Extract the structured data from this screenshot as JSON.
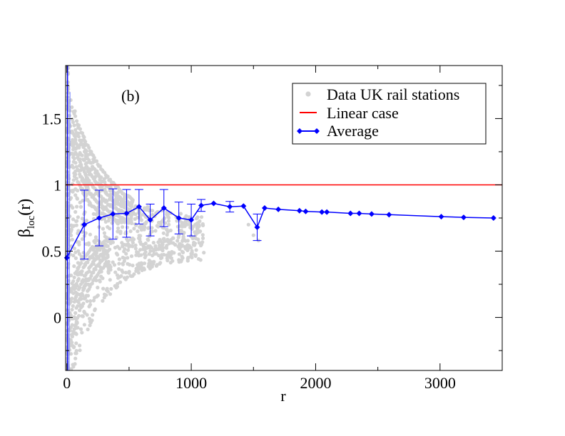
{
  "chart_data": {
    "type": "scatter",
    "panel_label": "(b)",
    "xlabel": "r",
    "ylabel_main": "β",
    "ylabel_sub": "loc",
    "ylabel_tail": "(r)",
    "xlim": [
      -10,
      3500
    ],
    "ylim": [
      -0.4,
      1.9
    ],
    "xticks": [
      0,
      1000,
      2000,
      3000
    ],
    "xtick_labels": [
      "0",
      "1000",
      "2000",
      "3000"
    ],
    "yticks": [
      0,
      0.5,
      1,
      1.5
    ],
    "ytick_labels": [
      "0",
      "0.5",
      "1",
      "1.5"
    ],
    "legend": {
      "position": "top-right",
      "entries": [
        "Data UK rail stations",
        "Linear case",
        "Average"
      ]
    },
    "colors": {
      "data": "#d3d3d3",
      "linear": "#ff0000",
      "average": "#0000ff"
    },
    "linear_case": {
      "y": 1.0
    },
    "average": {
      "x": [
        0,
        140,
        260,
        370,
        480,
        580,
        670,
        780,
        900,
        1000,
        1080,
        1180,
        1310,
        1420,
        1530,
        1590,
        1700,
        1870,
        1920,
        2050,
        2090,
        2280,
        2350,
        2450,
        2590,
        3010,
        3190,
        3430
      ],
      "y": [
        0.45,
        0.7,
        0.75,
        0.78,
        0.785,
        0.835,
        0.735,
        0.825,
        0.75,
        0.735,
        0.845,
        0.86,
        0.835,
        0.84,
        0.68,
        0.825,
        0.815,
        0.805,
        0.8,
        0.795,
        0.795,
        0.785,
        0.785,
        0.78,
        0.775,
        0.76,
        0.755,
        0.75
      ],
      "err": [
        0,
        0.26,
        0.21,
        0.19,
        0.18,
        0.13,
        0.12,
        0.14,
        0.12,
        0.12,
        0.045,
        0,
        0.04,
        0,
        0.1,
        0,
        0,
        0,
        0,
        0,
        0,
        0,
        0,
        0,
        0,
        0,
        0,
        0
      ]
    }
  }
}
